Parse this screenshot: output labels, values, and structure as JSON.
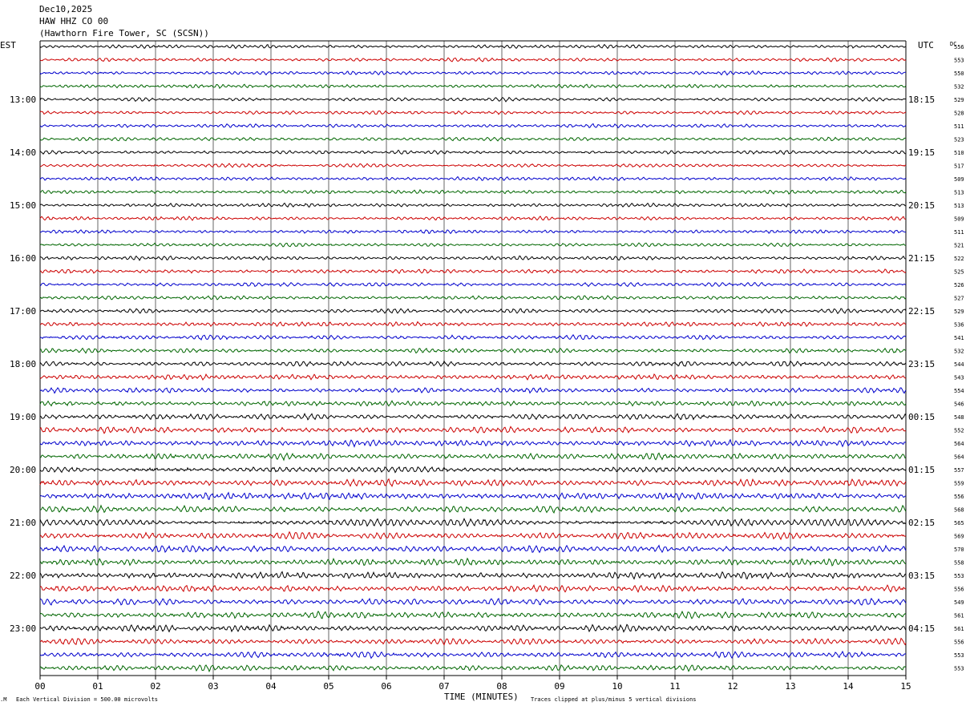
{
  "header": {
    "date": "Dec10,2025",
    "station": "HAW HHZ CO 00",
    "location": "(Hawthorn Fire Tower, SC (SCSN))"
  },
  "left_zone_label": "EST",
  "right_zone_label": "UTC",
  "dc_label": "DC",
  "footer": {
    "vertical_division": "Each Vertical Division =  500.00 microvolts",
    "xlabel": "TIME (MINUTES)",
    "clip_note": "Traces clipped at plus/minus 5 vertical divisions"
  },
  "colors": {
    "trace_cycle": [
      "#000000",
      "#cc0000",
      "#0000cc",
      "#006600"
    ],
    "grid": "#000000",
    "background": "#ffffff"
  },
  "chart_data": {
    "type": "line",
    "title": "HAW HHZ CO 00",
    "xlabel": "TIME (MINUTES)",
    "xlim": [
      0,
      15
    ],
    "x_ticks": [
      "00",
      "01",
      "02",
      "03",
      "04",
      "05",
      "06",
      "07",
      "08",
      "09",
      "10",
      "11",
      "12",
      "13",
      "14",
      "15"
    ],
    "trace_interval_minutes": 15,
    "left_hour_labels": [
      {
        "trace": 4,
        "label": "13:00"
      },
      {
        "trace": 8,
        "label": "14:00"
      },
      {
        "trace": 12,
        "label": "15:00"
      },
      {
        "trace": 16,
        "label": "16:00"
      },
      {
        "trace": 20,
        "label": "17:00"
      },
      {
        "trace": 24,
        "label": "18:00"
      },
      {
        "trace": 28,
        "label": "19:00"
      },
      {
        "trace": 32,
        "label": "20:00"
      },
      {
        "trace": 36,
        "label": "21:00"
      },
      {
        "trace": 40,
        "label": "22:00"
      },
      {
        "trace": 44,
        "label": "23:00"
      }
    ],
    "right_hour_labels": [
      {
        "trace": 4,
        "label": "18:15"
      },
      {
        "trace": 8,
        "label": "19:15"
      },
      {
        "trace": 12,
        "label": "20:15"
      },
      {
        "trace": 16,
        "label": "21:15"
      },
      {
        "trace": 20,
        "label": "22:15"
      },
      {
        "trace": 24,
        "label": "23:15"
      },
      {
        "trace": 28,
        "label": "00:15"
      },
      {
        "trace": 32,
        "label": "01:15"
      },
      {
        "trace": 36,
        "label": "02:15"
      },
      {
        "trace": 40,
        "label": "03:15"
      },
      {
        "trace": 44,
        "label": "04:15"
      }
    ],
    "dc_offsets": [
      "556",
      "553",
      "550",
      "532",
      "529",
      "528",
      "511",
      "523",
      "510",
      "517",
      "509",
      "513",
      "513",
      "509",
      "511",
      "521",
      "522",
      "525",
      "526",
      "527",
      "529",
      "536",
      "541",
      "532",
      "544",
      "543",
      "554",
      "546",
      "548",
      "552",
      "564",
      "564",
      "557",
      "559",
      "556",
      "568",
      "565",
      "569",
      "570",
      "558",
      "553",
      "556",
      "549",
      "561",
      "561",
      "556",
      "553",
      "553"
    ],
    "trace_amplitude_level": [
      2,
      2,
      2,
      2,
      2,
      2,
      2,
      2,
      2,
      2,
      2,
      2,
      2,
      2,
      2,
      2,
      2.2,
      2.2,
      2.2,
      2.2,
      2.5,
      2.5,
      2.5,
      2.5,
      2.8,
      2.8,
      2.8,
      2.8,
      3.2,
      3.4,
      3.4,
      3.4,
      3.6,
      3.8,
      3.8,
      3.6,
      3.8,
      3.8,
      3.8,
      3.6,
      3.6,
      3.6,
      3.6,
      3.6,
      3.6,
      3.4,
      3.4,
      3.2
    ]
  }
}
